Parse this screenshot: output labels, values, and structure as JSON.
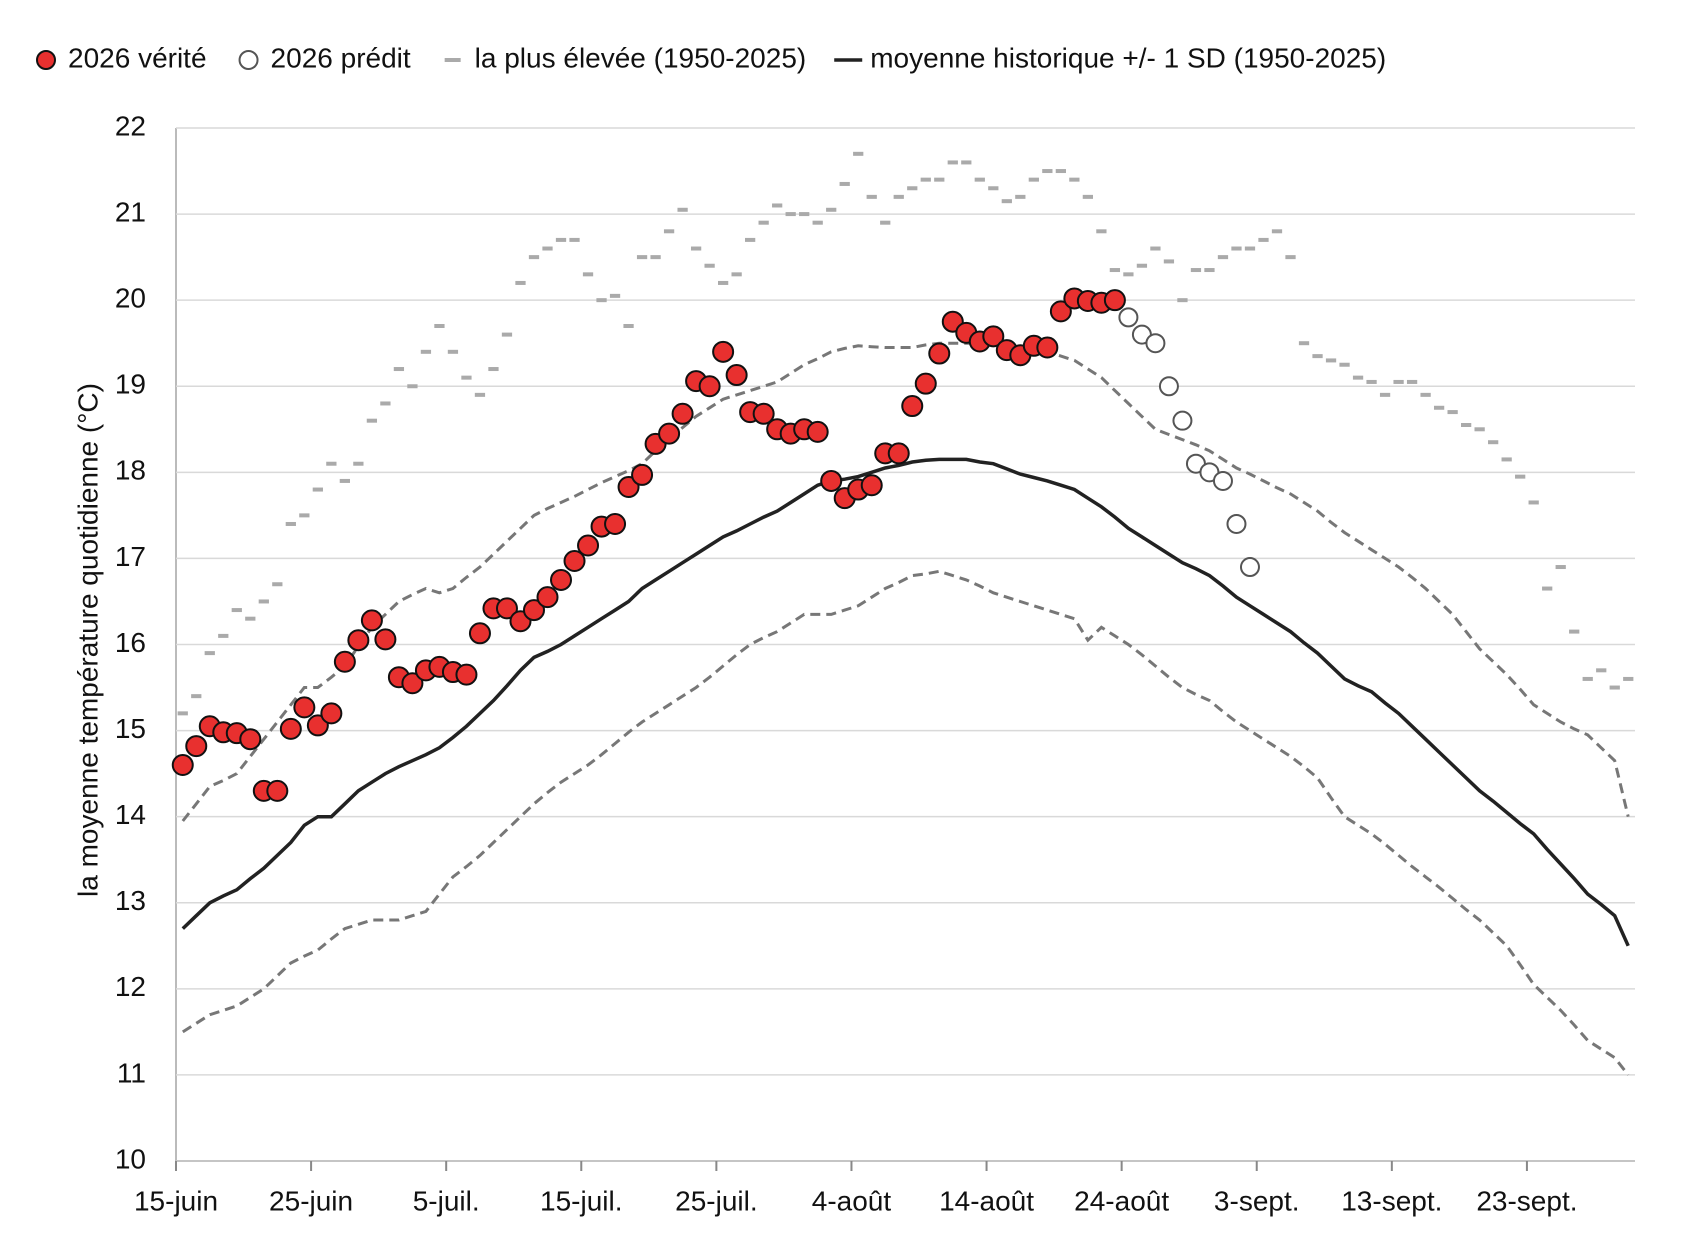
{
  "chart_data": {
    "type": "line",
    "y_label": "la moyenne température quotidienne (°C)",
    "categories": [
      "15-juin",
      null,
      null,
      null,
      null,
      null,
      null,
      null,
      null,
      null,
      "25-juin",
      null,
      null,
      null,
      null,
      null,
      null,
      null,
      null,
      null,
      "5-juil.",
      null,
      null,
      null,
      null,
      null,
      null,
      null,
      null,
      null,
      "15-juil.",
      null,
      null,
      null,
      null,
      null,
      null,
      null,
      null,
      null,
      "25-juil.",
      null,
      null,
      null,
      null,
      null,
      null,
      null,
      null,
      null,
      "4-août",
      null,
      null,
      null,
      null,
      null,
      null,
      null,
      null,
      null,
      "14-août",
      null,
      null,
      null,
      null,
      null,
      null,
      null,
      null,
      null,
      "24-août",
      null,
      null,
      null,
      null,
      null,
      null,
      null,
      null,
      null,
      "3-sept.",
      null,
      null,
      null,
      null,
      null,
      null,
      null,
      null,
      null,
      "13-sept.",
      null,
      null,
      null,
      null,
      null,
      null,
      null,
      null,
      null,
      "23-sept.",
      null,
      null,
      null,
      null,
      null,
      null,
      null
    ],
    "ylim": [
      10,
      22
    ],
    "yticks": [
      10,
      11,
      12,
      13,
      14,
      15,
      16,
      17,
      18,
      19,
      20,
      21,
      22
    ],
    "grid": true,
    "legend": "top",
    "series": [
      {
        "name": "2026 vérité",
        "style": "marker",
        "color": "#e8302f",
        "values": [
          14.6,
          14.82,
          15.05,
          14.98,
          14.97,
          14.9,
          14.3,
          14.3,
          15.02,
          15.27,
          15.06,
          15.2,
          15.8,
          16.05,
          16.28,
          16.06,
          15.62,
          15.55,
          15.7,
          15.74,
          15.68,
          15.65,
          16.13,
          16.42,
          16.42,
          16.27,
          16.4,
          16.55,
          16.75,
          16.97,
          17.15,
          17.37,
          17.4,
          17.83,
          17.97,
          18.33,
          18.45,
          18.68,
          19.06,
          19.0,
          19.4,
          19.13,
          18.7,
          18.68,
          18.5,
          18.45,
          18.5,
          18.47,
          17.9,
          17.7,
          17.8,
          17.85,
          18.22,
          18.22,
          18.77,
          19.03,
          19.38,
          19.75,
          19.62,
          19.52,
          19.58,
          19.42,
          19.36,
          19.47,
          19.45,
          19.87,
          20.02,
          19.99,
          19.97,
          20.0,
          null,
          null,
          null,
          null,
          null,
          null,
          null,
          null,
          null,
          null,
          null,
          null,
          null,
          null,
          null,
          null,
          null,
          null,
          null,
          null,
          null,
          null,
          null,
          null,
          null,
          null,
          null,
          null,
          null,
          null,
          null,
          null,
          null,
          null,
          null,
          null,
          null,
          null
        ]
      },
      {
        "name": "2026 prédit",
        "style": "open-marker",
        "color": "#555555",
        "values": [
          null,
          null,
          null,
          null,
          null,
          null,
          null,
          null,
          null,
          null,
          null,
          null,
          null,
          null,
          null,
          null,
          null,
          null,
          null,
          null,
          null,
          null,
          null,
          null,
          null,
          null,
          null,
          null,
          null,
          null,
          null,
          null,
          null,
          null,
          null,
          null,
          null,
          null,
          null,
          null,
          null,
          null,
          null,
          null,
          null,
          null,
          null,
          null,
          null,
          null,
          null,
          null,
          null,
          null,
          null,
          null,
          null,
          null,
          null,
          null,
          null,
          null,
          null,
          null,
          null,
          null,
          null,
          null,
          null,
          null,
          19.8,
          19.6,
          19.5,
          19.0,
          18.6,
          18.1,
          18.0,
          17.9,
          17.4,
          16.9,
          null,
          null,
          null,
          null,
          null,
          null,
          null,
          null,
          null,
          null,
          null,
          null,
          null,
          null,
          null,
          null,
          null,
          null,
          null,
          null,
          null,
          null,
          null,
          null,
          null,
          null,
          null,
          null
        ]
      },
      {
        "name": "la plus élevée (1950-2025)",
        "style": "dash",
        "color": "#aaaaaa",
        "values": [
          15.2,
          15.4,
          15.9,
          16.1,
          16.4,
          16.3,
          16.5,
          16.7,
          17.4,
          17.5,
          17.8,
          18.1,
          17.9,
          18.1,
          18.6,
          18.8,
          19.2,
          19.0,
          19.4,
          19.7,
          19.4,
          19.1,
          18.9,
          19.2,
          19.6,
          20.2,
          20.5,
          20.6,
          20.7,
          20.7,
          20.3,
          20.0,
          20.05,
          19.7,
          20.5,
          20.5,
          20.8,
          21.05,
          20.6,
          20.4,
          20.2,
          20.3,
          20.7,
          20.9,
          21.1,
          21.0,
          21.0,
          20.9,
          21.05,
          21.35,
          21.7,
          21.2,
          20.9,
          21.2,
          21.3,
          21.4,
          21.4,
          21.6,
          21.6,
          21.4,
          21.3,
          21.15,
          21.2,
          21.4,
          21.5,
          21.5,
          21.4,
          21.2,
          20.8,
          20.35,
          20.3,
          20.4,
          20.6,
          20.45,
          20.0,
          20.35,
          20.35,
          20.5,
          20.6,
          20.6,
          20.7,
          20.8,
          20.5,
          19.5,
          19.35,
          19.3,
          19.25,
          19.1,
          19.05,
          18.9,
          19.05,
          19.05,
          18.9,
          18.75,
          18.7,
          18.55,
          18.5,
          18.35,
          18.15,
          17.95,
          17.65,
          16.65,
          16.9,
          16.15,
          15.6,
          15.7,
          15.5,
          15.6
        ]
      },
      {
        "name": "moyenne historique +/- 1 SD (1950-2025)",
        "style": "line",
        "color": "#222222",
        "values": [
          12.7,
          12.85,
          13.0,
          13.08,
          13.15,
          13.28,
          13.4,
          13.55,
          13.7,
          13.9,
          14.0,
          14.0,
          14.15,
          14.3,
          14.4,
          14.5,
          14.58,
          14.65,
          14.72,
          14.8,
          14.92,
          15.05,
          15.2,
          15.35,
          15.52,
          15.7,
          15.85,
          15.92,
          16.0,
          16.1,
          16.2,
          16.3,
          16.4,
          16.5,
          16.65,
          16.75,
          16.85,
          16.95,
          17.05,
          17.15,
          17.25,
          17.32,
          17.4,
          17.48,
          17.55,
          17.65,
          17.75,
          17.85,
          17.9,
          17.92,
          17.95,
          18.0,
          18.05,
          18.08,
          18.12,
          18.14,
          18.15,
          18.15,
          18.15,
          18.12,
          18.1,
          18.04,
          17.98,
          17.94,
          17.9,
          17.85,
          17.8,
          17.7,
          17.6,
          17.48,
          17.35,
          17.25,
          17.15,
          17.05,
          16.95,
          16.88,
          16.8,
          16.68,
          16.55,
          16.45,
          16.35,
          16.25,
          16.15,
          16.02,
          15.9,
          15.75,
          15.6,
          15.52,
          15.45,
          15.32,
          15.2,
          15.05,
          14.9,
          14.75,
          14.6,
          14.45,
          14.3,
          14.18,
          14.05,
          13.92,
          13.8,
          13.62,
          13.45,
          13.28,
          13.1,
          12.98,
          12.85,
          12.5
        ]
      },
      {
        "style": "dashed",
        "color": "#777777",
        "values": [
          13.95,
          14.15,
          14.35,
          14.42,
          14.5,
          14.7,
          14.9,
          15.1,
          15.3,
          15.5,
          15.5,
          15.62,
          15.75,
          15.98,
          16.2,
          16.35,
          16.5,
          16.58,
          16.65,
          16.6,
          16.65,
          16.78,
          16.9,
          17.05,
          17.2,
          17.35,
          17.5,
          17.58,
          17.65,
          17.72,
          17.8,
          17.88,
          17.95,
          18.02,
          18.1,
          18.25,
          18.4,
          18.52,
          18.65,
          18.75,
          18.85,
          18.9,
          18.95,
          19.0,
          19.05,
          19.15,
          19.25,
          19.32,
          19.4,
          19.44,
          19.47,
          19.46,
          19.45,
          19.45,
          19.45,
          19.48,
          19.5,
          19.5,
          19.5,
          19.5,
          19.5,
          19.48,
          19.45,
          19.42,
          19.4,
          19.35,
          19.3,
          19.2,
          19.1,
          18.95,
          18.8,
          18.65,
          18.5,
          18.44,
          18.38,
          18.32,
          18.25,
          18.15,
          18.05,
          17.98,
          17.9,
          17.82,
          17.75,
          17.65,
          17.55,
          17.42,
          17.3,
          17.2,
          17.1,
          17.0,
          16.9,
          16.78,
          16.65,
          16.5,
          16.35,
          16.15,
          15.95,
          15.8,
          15.65,
          15.48,
          15.3,
          15.2,
          15.1,
          15.02,
          14.95,
          14.8,
          14.65,
          14.0
        ]
      },
      {
        "style": "dashed",
        "color": "#777777",
        "values": [
          11.5,
          11.6,
          11.7,
          11.75,
          11.8,
          11.9,
          12.0,
          12.15,
          12.3,
          12.38,
          12.45,
          12.58,
          12.7,
          12.75,
          12.8,
          12.8,
          12.8,
          12.85,
          12.9,
          13.1,
          13.3,
          13.42,
          13.55,
          13.7,
          13.85,
          14.0,
          14.15,
          14.28,
          14.4,
          14.5,
          14.6,
          14.72,
          14.85,
          14.98,
          15.1,
          15.2,
          15.3,
          15.4,
          15.5,
          15.62,
          15.75,
          15.88,
          16.0,
          16.08,
          16.15,
          16.25,
          16.35,
          16.35,
          16.35,
          16.4,
          16.45,
          16.55,
          16.65,
          16.72,
          16.8,
          16.82,
          16.85,
          16.8,
          16.75,
          16.68,
          16.6,
          16.55,
          16.5,
          16.45,
          16.4,
          16.35,
          16.3,
          16.05,
          16.2,
          16.1,
          16.0,
          15.88,
          15.75,
          15.62,
          15.5,
          15.42,
          15.35,
          15.22,
          15.1,
          15.0,
          14.9,
          14.8,
          14.7,
          14.58,
          14.45,
          14.22,
          14.0,
          13.9,
          13.8,
          13.68,
          13.55,
          13.42,
          13.3,
          13.18,
          13.05,
          12.92,
          12.8,
          12.65,
          12.5,
          12.28,
          12.05,
          11.9,
          11.75,
          11.58,
          11.4,
          11.3,
          11.2,
          11.0
        ]
      }
    ]
  }
}
